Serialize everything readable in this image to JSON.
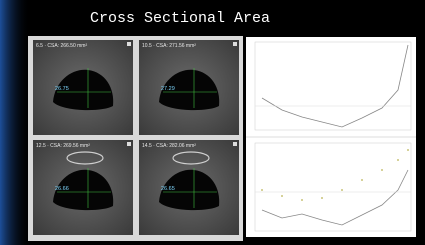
{
  "header": {
    "title": "Cross Sectional Area"
  },
  "panels": [
    {
      "caption": "6.5 · CSA: 266.50 mm²",
      "measure": "26.75"
    },
    {
      "caption": "10.5 · CSA: 271.56 mm²",
      "measure": "27.29"
    },
    {
      "caption": "12.5 · CSA: 269.56 mm²",
      "measure": "26.66"
    },
    {
      "caption": "14.5 · CSA: 282.06 mm²",
      "measure": "26.65"
    }
  ]
}
